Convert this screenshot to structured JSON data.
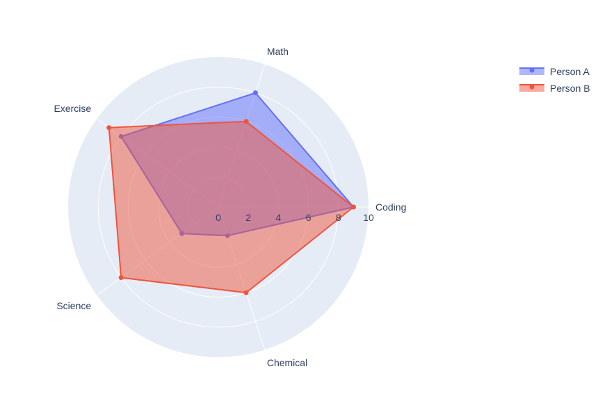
{
  "chart_data": {
    "type": "radar",
    "categories": [
      "Coding",
      "Math",
      "Exercise",
      "Science",
      "Chemical"
    ],
    "series": [
      {
        "name": "Person A",
        "values": [
          9,
          8,
          8,
          3,
          2
        ],
        "color": "#636efa"
      },
      {
        "name": "Person B",
        "values": [
          9,
          6,
          9,
          8,
          6
        ],
        "color": "#ef553b"
      }
    ],
    "radial_ticks": [
      "0",
      "2",
      "4",
      "6",
      "8",
      "10"
    ],
    "radial_range": [
      0,
      10
    ],
    "legend_position": "top-right",
    "polar_background": "#e5ecf6",
    "grid_color": "#ffffff"
  }
}
